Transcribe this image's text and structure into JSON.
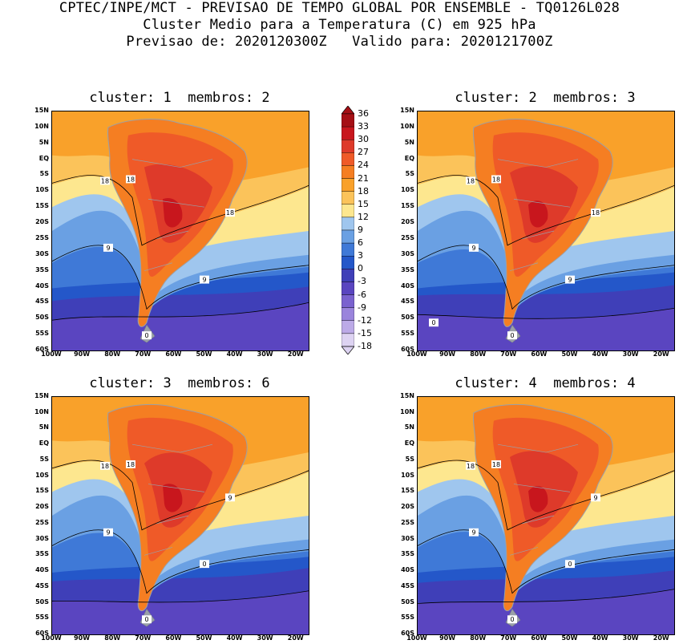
{
  "header": {
    "line1": "CPTEC/INPE/MCT - PREVISAO DE TEMPO GLOBAL POR ENSEMBLE - TQ0126L028",
    "line2": "Cluster Medio para a Temperatura (C) em 925 hPa",
    "line3": "Previsao de: 2020120300Z   Valido para: 2020121700Z"
  },
  "panels": [
    {
      "title": "cluster: 1  membros: 2",
      "contour_labels": [
        "18",
        "18",
        "18",
        "9",
        "9",
        "0"
      ]
    },
    {
      "title": "cluster: 2  membros: 3",
      "contour_labels": [
        "18",
        "18",
        "18",
        "9",
        "9",
        "0",
        "0"
      ]
    },
    {
      "title": "cluster: 3  membros: 6",
      "contour_labels": [
        "18",
        "18",
        "9",
        "9",
        "0",
        "0"
      ]
    },
    {
      "title": "cluster: 4  membros: 4",
      "contour_labels": [
        "18",
        "18",
        "9",
        "9",
        "0",
        "0"
      ]
    }
  ],
  "lat_ticks": [
    "15N",
    "10N",
    "5N",
    "EQ",
    "5S",
    "10S",
    "15S",
    "20S",
    "25S",
    "30S",
    "35S",
    "40S",
    "45S",
    "50S",
    "55S",
    "60S"
  ],
  "lon_ticks": [
    "100W",
    "90W",
    "80W",
    "70W",
    "60W",
    "50W",
    "40W",
    "30W",
    "20W"
  ],
  "colorbar": {
    "levels": [
      "36",
      "33",
      "30",
      "27",
      "24",
      "21",
      "18",
      "15",
      "12",
      "9",
      "6",
      "3",
      "0",
      "-3",
      "-6",
      "-9",
      "-12",
      "-15",
      "-18"
    ],
    "colors": [
      "#a50f15",
      "#c8161d",
      "#de3a2a",
      "#ef5a28",
      "#f57e22",
      "#f9a12a",
      "#fbc35a",
      "#fde78f",
      "#9fc6ee",
      "#6aa0e3",
      "#3f79d7",
      "#2457c9",
      "#3f3fb8",
      "#5a45c0",
      "#7a62cf",
      "#9a84dc",
      "#bcaae7",
      "#ddd3f2"
    ]
  }
}
